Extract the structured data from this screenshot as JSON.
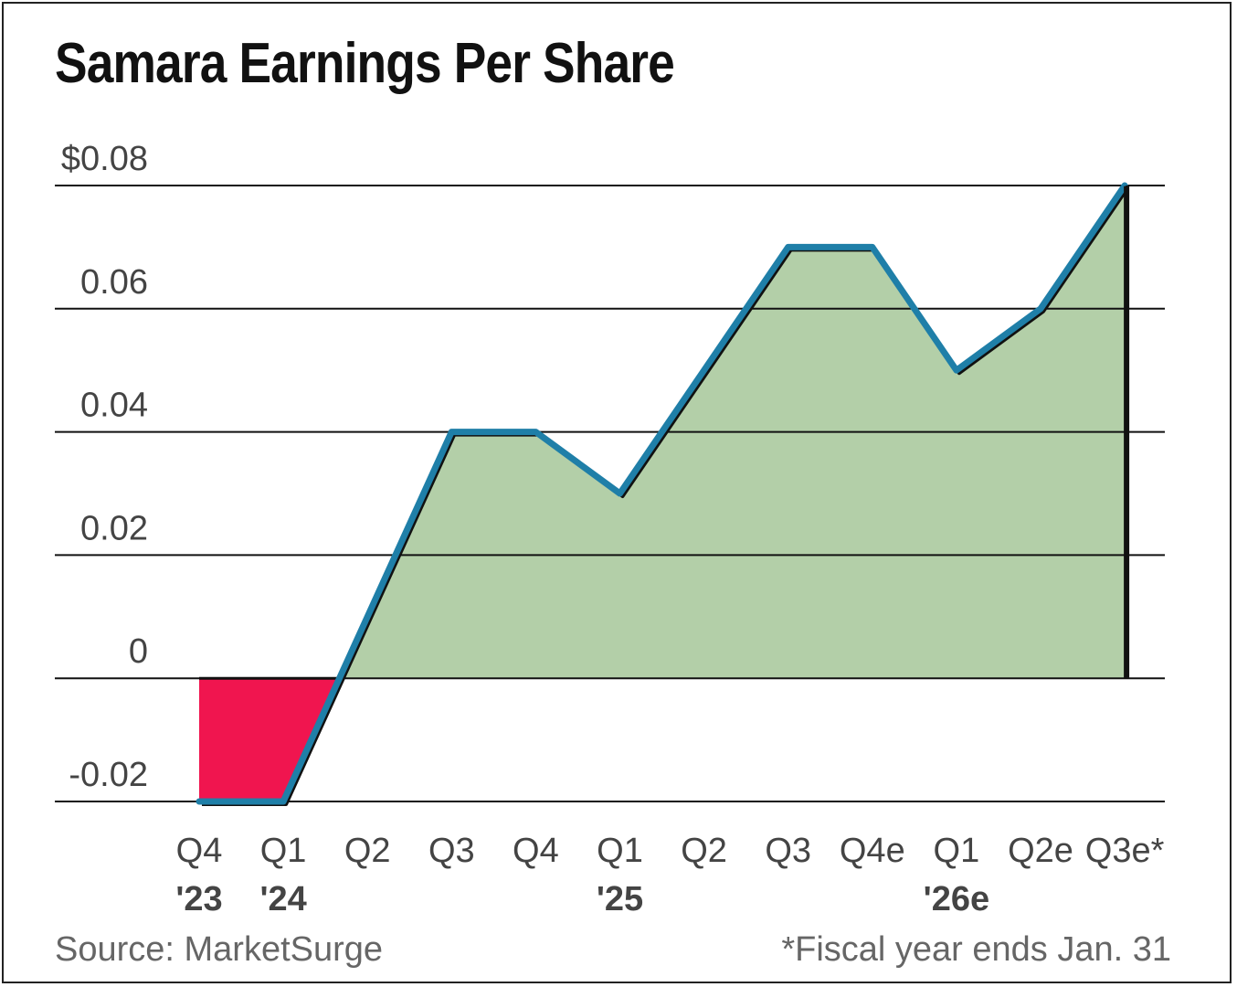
{
  "chart_data": {
    "type": "area",
    "title": "Samara Earnings Per Share",
    "categories": [
      "Q4",
      "Q1",
      "Q2",
      "Q3",
      "Q4",
      "Q1",
      "Q2",
      "Q3",
      "Q4e",
      "Q1",
      "Q2e",
      "Q3e*"
    ],
    "year_labels": [
      {
        "label": "'23",
        "index": 0
      },
      {
        "label": "'24",
        "index": 1
      },
      {
        "label": "'25",
        "index": 5
      },
      {
        "label": "'26e",
        "index": 9
      }
    ],
    "values": [
      -0.02,
      -0.02,
      0.01,
      0.04,
      0.04,
      0.03,
      0.05,
      0.07,
      0.07,
      0.05,
      0.06,
      0.08
    ],
    "ylim": [
      -0.02,
      0.08
    ],
    "yticks": [
      -0.02,
      0,
      0.02,
      0.04,
      0.06,
      0.08
    ],
    "ytick_labels": [
      "-0.02",
      "0",
      "0.02",
      "0.04",
      "0.06",
      "$0.08"
    ],
    "source": "Source: MarketSurge",
    "footnote": "*Fiscal year ends Jan. 31",
    "colors": {
      "positive_fill": "#b3cfa8",
      "negative_fill": "#f0154f",
      "line": "#1f7fa8",
      "shadow": "#111111",
      "grid": "#111111"
    }
  }
}
